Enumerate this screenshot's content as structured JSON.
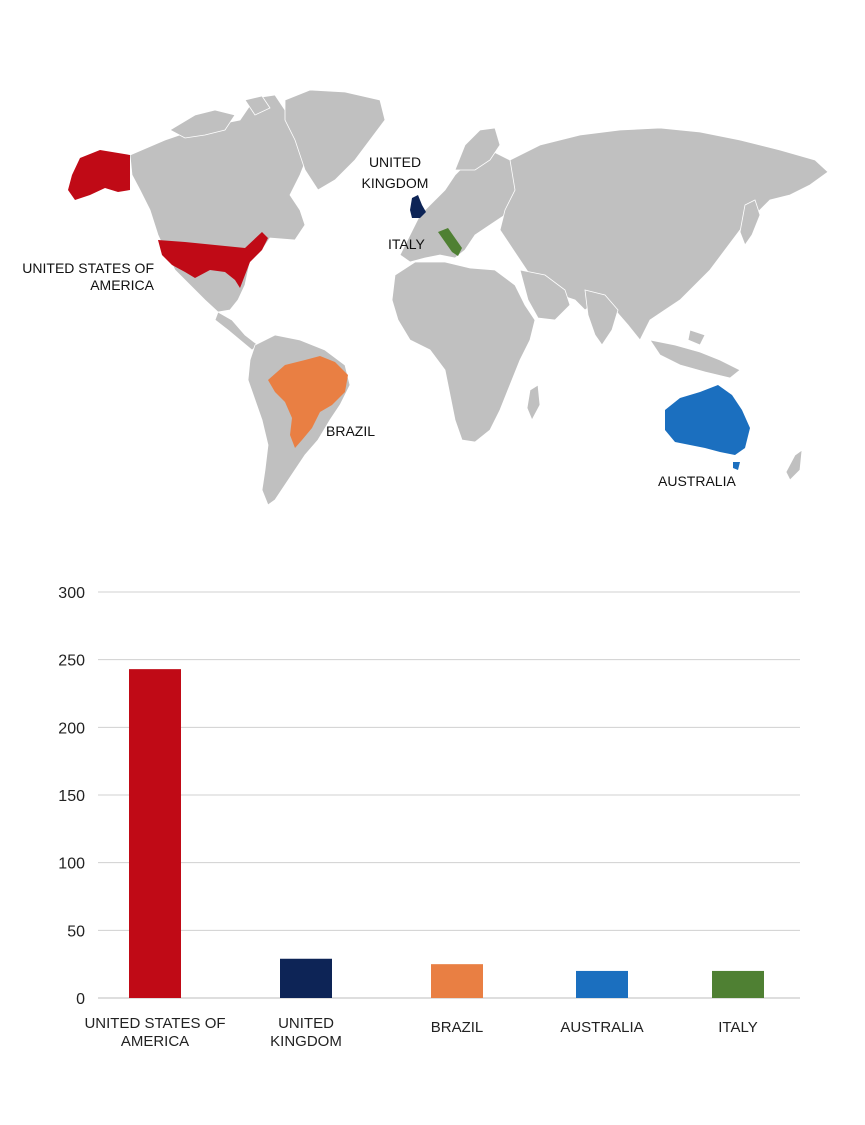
{
  "map": {
    "labels": {
      "usa_line1": "UNITED STATES OF",
      "usa_line2": "AMERICA",
      "uk_line1": "UNITED",
      "uk_line2": "KINGDOM",
      "italy": "ITALY",
      "brazil": "BRAZIL",
      "australia": "AUSTRALIA"
    },
    "land_color": "#c0c0c0",
    "highlight_colors": {
      "usa": "#c00a16",
      "uk": "#0d2456",
      "italy": "#4f8033",
      "brazil": "#e97f43",
      "australia": "#1b6fbf"
    }
  },
  "chart_data": {
    "type": "bar",
    "categories": [
      [
        "UNITED STATES OF",
        "AMERICA"
      ],
      [
        "UNITED",
        "KINGDOM"
      ],
      [
        "BRAZIL"
      ],
      [
        "AUSTRALIA"
      ],
      [
        "ITALY"
      ]
    ],
    "values": [
      243,
      29,
      25,
      20,
      20
    ],
    "colors": [
      "#c00a16",
      "#0d2456",
      "#e97f43",
      "#1b6fbf",
      "#4f8033"
    ],
    "ylim": [
      0,
      300
    ],
    "yticks": [
      0,
      50,
      100,
      150,
      200,
      250,
      300
    ],
    "grid": true,
    "title": "",
    "xlabel": "",
    "ylabel": ""
  }
}
